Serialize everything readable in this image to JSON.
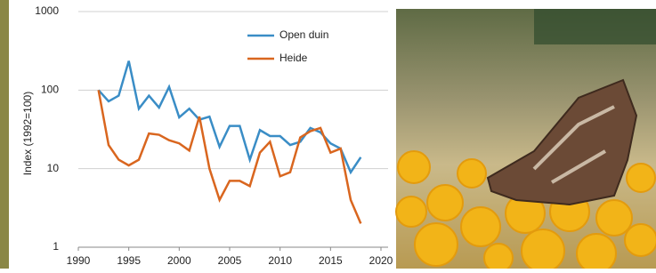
{
  "chart_data": {
    "type": "line",
    "y_label": "Index (1992=100)",
    "x": [
      1992,
      1993,
      1994,
      1995,
      1996,
      1997,
      1998,
      1999,
      2000,
      2001,
      2002,
      2003,
      2004,
      2005,
      2006,
      2007,
      2008,
      2009,
      2010,
      2011,
      2012,
      2013,
      2014,
      2015,
      2016,
      2017,
      2018
    ],
    "series": [
      {
        "name": "Open duin",
        "color": "#3a8dc6",
        "values": [
          100,
          72,
          85,
          235,
          58,
          85,
          60,
          110,
          45,
          58,
          42,
          46,
          19,
          35,
          35,
          13,
          31,
          26,
          26,
          20,
          22,
          33,
          29,
          21,
          18,
          9,
          14
        ]
      },
      {
        "name": "Heide",
        "color": "#d9661f",
        "values": [
          100,
          20,
          13,
          11,
          13,
          28,
          27,
          23,
          21,
          17,
          46,
          10,
          4,
          7,
          7,
          6,
          16,
          22,
          8,
          9,
          25,
          30,
          33,
          16,
          18,
          4,
          2
        ]
      }
    ],
    "xlim": [
      1990,
      2020
    ],
    "xticks": [
      1990,
      1995,
      2000,
      2005,
      2010,
      2015,
      2020
    ],
    "ylim": [
      1,
      1000
    ],
    "yticks": [
      1,
      10,
      100,
      1000
    ],
    "yscale": "log",
    "grid": true,
    "legend": "upper right"
  }
}
